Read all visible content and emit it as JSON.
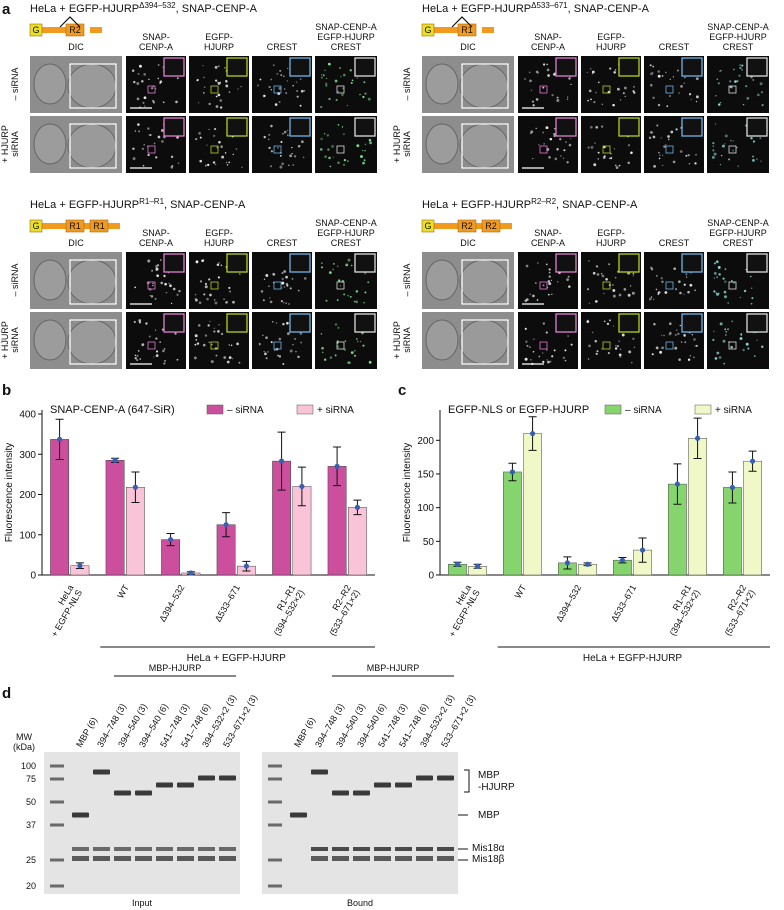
{
  "panel_a": {
    "label": "a",
    "blocks": [
      {
        "title": "HeLa + EGFP-HJURP",
        "title_sup": "Δ394–532",
        "title_end": ", SNAP-CENP-A",
        "domains": [
          "G",
          "R2"
        ]
      },
      {
        "title": "HeLa + EGFP-HJURP",
        "title_sup": "Δ533–671",
        "title_end": ", SNAP-CENP-A",
        "domains": [
          "G",
          "R1"
        ]
      },
      {
        "title": "HeLa + EGFP-HJURP",
        "title_sup": "R1–R1",
        "title_end": ", SNAP-CENP-A",
        "domains": [
          "G",
          "R1",
          "R1"
        ]
      },
      {
        "title": "HeLa + EGFP-HJURP",
        "title_sup": "R2–R2",
        "title_end": ", SNAP-CENP-A",
        "domains": [
          "G",
          "R2",
          "R2"
        ]
      }
    ],
    "column_labels": [
      "DIC",
      "SNAP-\nCENP-A",
      "EGFP-\nHJURP",
      "CREST"
    ],
    "merge_labels": [
      "SNAP-CENP-A",
      "EGFP-HJURP",
      "CREST"
    ],
    "row_labels": [
      "– siRNA",
      "+ HJURP\nsiRNA"
    ]
  },
  "chart_data": [
    {
      "type": "bar",
      "panel_label": "b",
      "title": "SNAP-CENP-A (647-SiR)",
      "y_label": "Fluorescence intensity",
      "categories": [
        "HeLa\n+ EGFP-NLS",
        "WT",
        "Δ394–532",
        "Δ533–671",
        "R1–R1\n(394–532×2)",
        "R2–R2\n(533–671×2)"
      ],
      "group_label": "HeLa + EGFP-HJURP",
      "series": [
        {
          "name": "– siRNA",
          "color": "#cc4f9d",
          "values": [
            337,
            285,
            88,
            125,
            283,
            270
          ],
          "errors": [
            50,
            5,
            15,
            30,
            72,
            48
          ]
        },
        {
          "name": "+ siRNA",
          "color": "#f9c4d8",
          "values": [
            23,
            218,
            5,
            22,
            220,
            168
          ],
          "errors": [
            7,
            38,
            3,
            12,
            48,
            18
          ]
        }
      ],
      "ylim": [
        0,
        410
      ],
      "yticks": [
        0,
        100,
        200,
        300,
        400
      ]
    },
    {
      "type": "bar",
      "panel_label": "c",
      "title": "EGFP-NLS or EGFP-HJURP",
      "y_label": "Fluorescence intensity",
      "categories": [
        "HeLa\n+ EGFP-NLS",
        "WT",
        "Δ394–532",
        "Δ533–671",
        "R1–R1\n(394–532×2)",
        "R2–R2\n(533–671×2)"
      ],
      "group_label": "HeLa + EGFP-HJURP",
      "series": [
        {
          "name": "– siRNA",
          "color": "#86d46e",
          "values": [
            16,
            153,
            18,
            22,
            135,
            130
          ],
          "errors": [
            3,
            13,
            9,
            4,
            30,
            23
          ]
        },
        {
          "name": "+ siRNA",
          "color": "#f0f8c8",
          "values": [
            13,
            210,
            16,
            37,
            203,
            169
          ],
          "errors": [
            3,
            25,
            2,
            18,
            30,
            15
          ]
        }
      ],
      "ylim": [
        0,
        245
      ],
      "yticks": [
        0,
        50,
        100,
        150,
        200
      ]
    }
  ],
  "panel_d": {
    "label": "d",
    "header": "MBP-HJURP",
    "lanes": [
      "MBP (6)",
      "394–748 (3)",
      "394–540 (3)",
      "394–540 (6)",
      "541–748 (3)",
      "541–748 (6)",
      "394–532×2 (3)",
      "533–671×2 (3)"
    ],
    "mw_title": "MW\n(kDa)",
    "mw_markers": [
      100,
      75,
      50,
      37,
      25,
      20
    ],
    "band_labels": [
      "MBP\n-HJURP",
      "MBP",
      "Mis18α",
      "Mis18β"
    ],
    "gel_captions": [
      "Input",
      "Bound"
    ]
  }
}
